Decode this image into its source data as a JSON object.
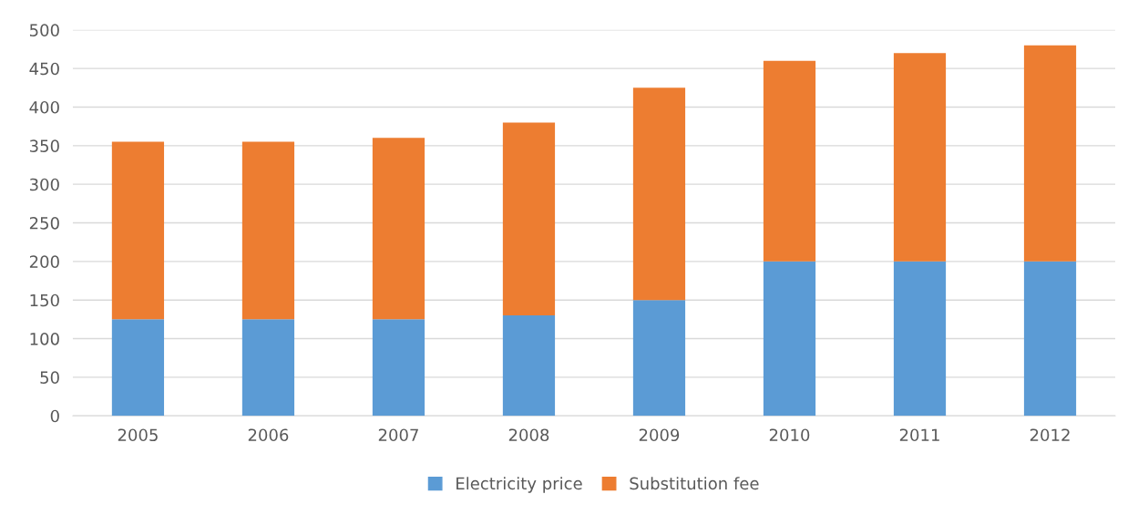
{
  "chart_data": {
    "type": "bar",
    "stacked": true,
    "categories": [
      "2005",
      "2006",
      "2007",
      "2008",
      "2009",
      "2010",
      "2011",
      "2012"
    ],
    "series": [
      {
        "name": "Electricity price",
        "color": "#5b9bd5",
        "values": [
          125,
          125,
          125,
          130,
          150,
          200,
          200,
          200
        ]
      },
      {
        "name": "Substitution fee",
        "color": "#ed7d31",
        "values": [
          230,
          230,
          235,
          250,
          275,
          260,
          270,
          280
        ]
      }
    ],
    "ylim": [
      0,
      500
    ],
    "yticks": [
      0,
      50,
      100,
      150,
      200,
      250,
      300,
      350,
      400,
      450,
      500
    ],
    "grid": "y",
    "legend": "bottom"
  }
}
